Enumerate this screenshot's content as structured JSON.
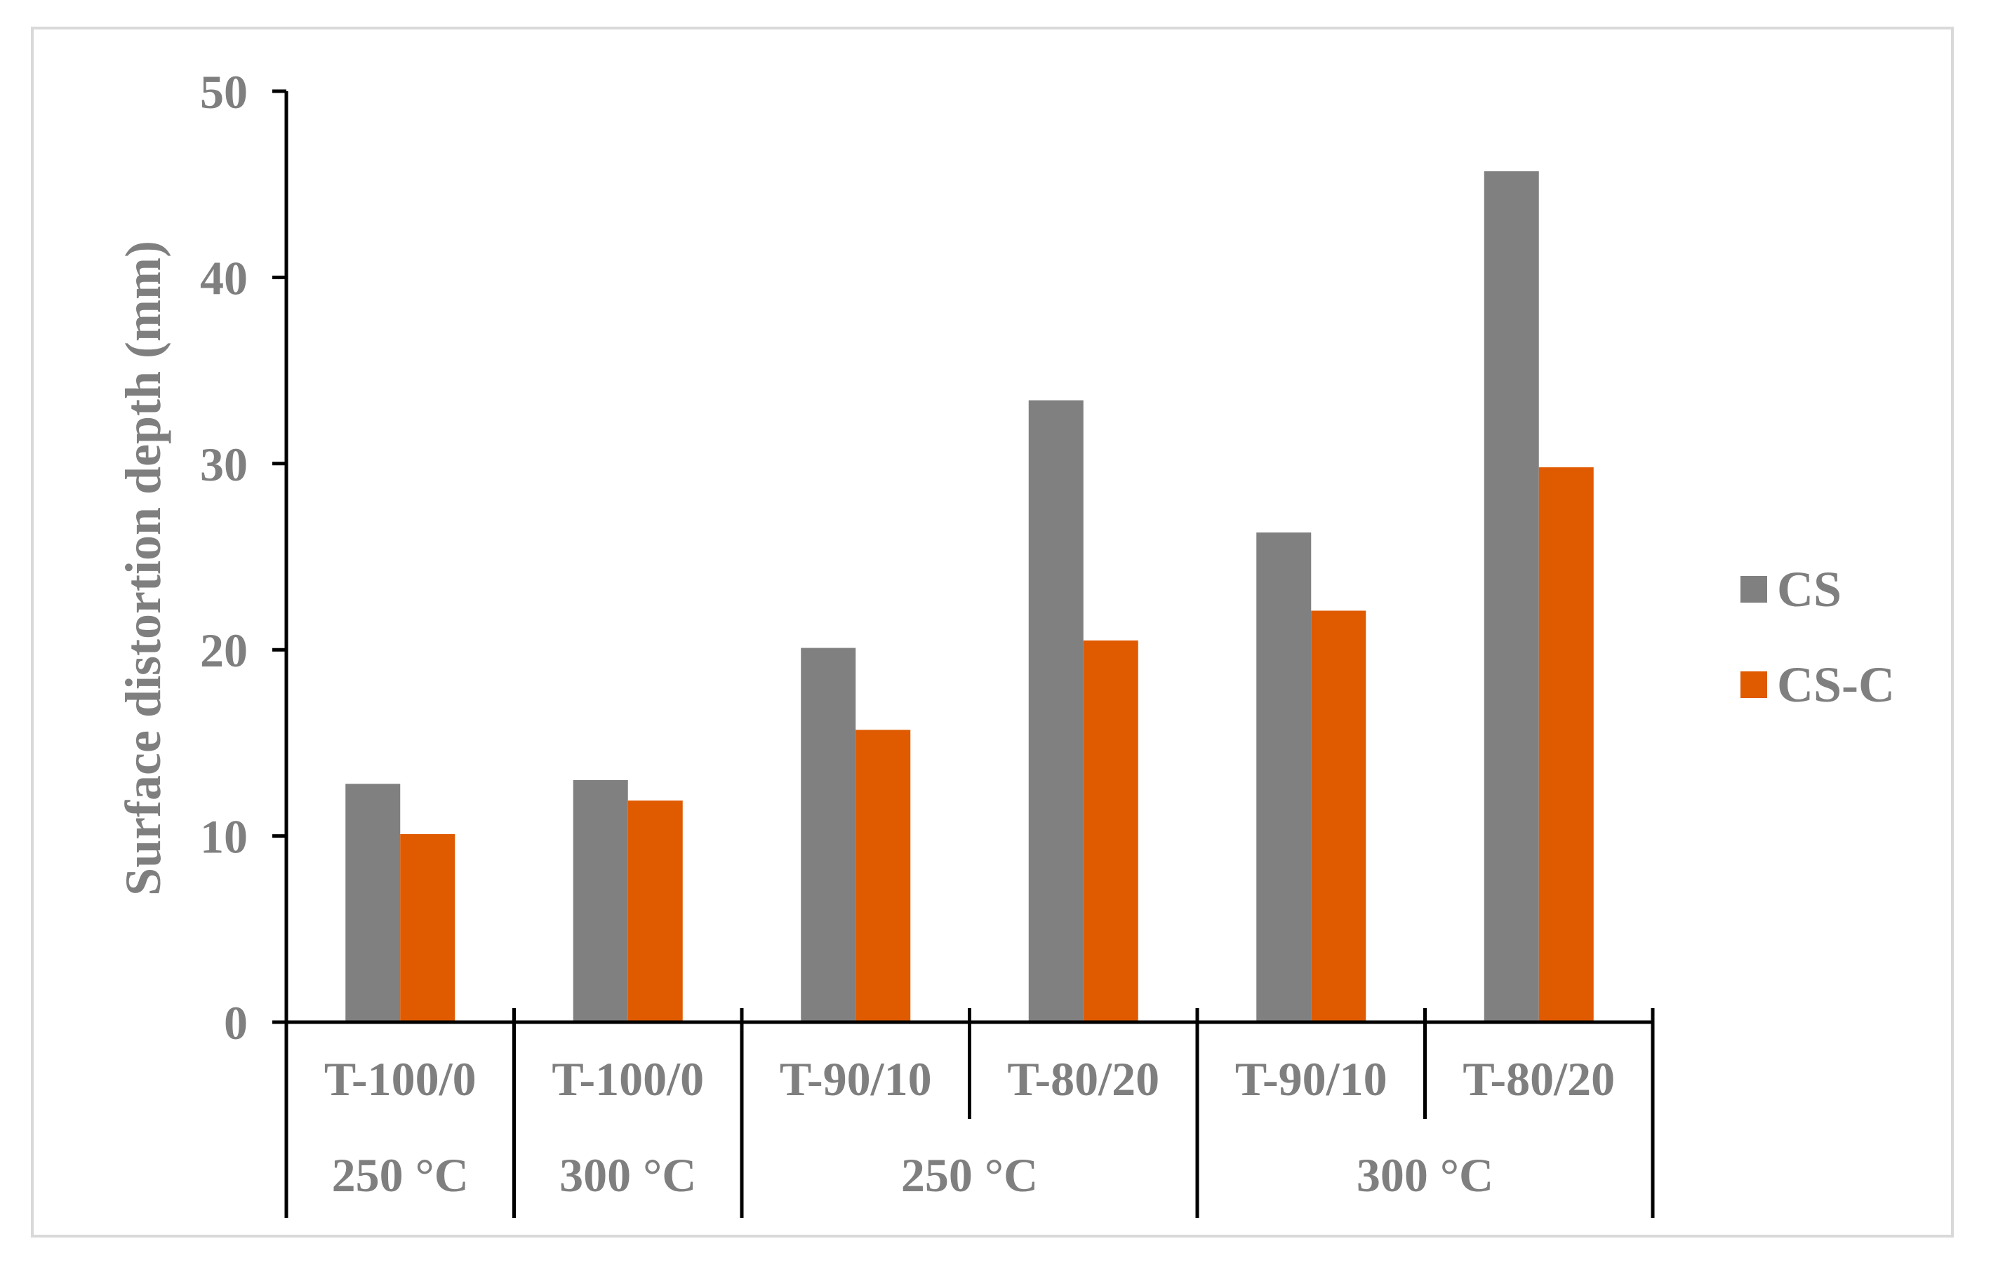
{
  "chart_data": {
    "type": "bar",
    "title": "",
    "xlabel": "",
    "ylabel": "Surface distortion depth (mm)",
    "ylim": [
      0,
      50
    ],
    "yticks": [
      0,
      10,
      20,
      30,
      40,
      50
    ],
    "grid": false,
    "legend_position": "right",
    "categories": [
      "T-100/0",
      "T-100/0",
      "T-90/10",
      "T-80/20",
      "T-90/10",
      "T-80/20"
    ],
    "groups": [
      {
        "label": "250 °C",
        "span": 1
      },
      {
        "label": "300 °C",
        "span": 1
      },
      {
        "label": "250 °C",
        "span": 2
      },
      {
        "label": "300 °C",
        "span": 2
      }
    ],
    "series": [
      {
        "name": "CS",
        "color": "#808080",
        "values": [
          12.8,
          13.0,
          20.1,
          33.4,
          26.3,
          45.7
        ]
      },
      {
        "name": "CS-C",
        "color": "#e05a00",
        "values": [
          10.1,
          11.9,
          15.7,
          20.5,
          22.1,
          29.8
        ]
      }
    ]
  }
}
